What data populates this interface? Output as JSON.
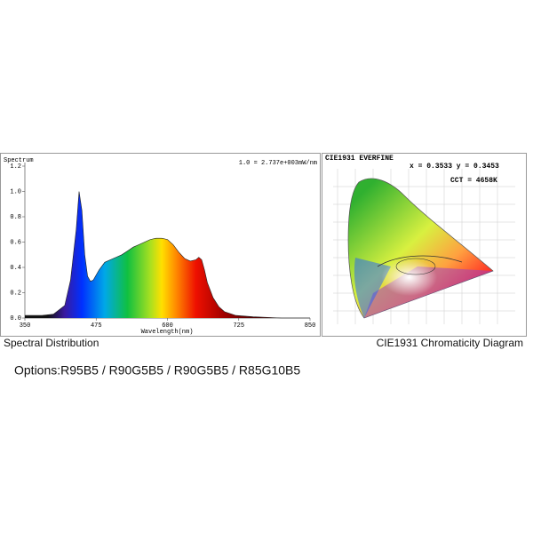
{
  "chart_data": {
    "type": "area",
    "title": "Spectrum",
    "note": "1.0 = 2.737e+003mW/nm",
    "x_label": "Wavelength(nm)",
    "caption": "Spectral Distribution",
    "x": [
      350,
      380,
      400,
      420,
      430,
      440,
      445,
      450,
      455,
      460,
      465,
      470,
      480,
      490,
      500,
      510,
      520,
      530,
      540,
      550,
      560,
      570,
      580,
      590,
      600,
      610,
      620,
      630,
      640,
      650,
      655,
      660,
      665,
      670,
      680,
      690,
      700,
      720,
      750,
      800,
      850
    ],
    "values": [
      0.02,
      0.02,
      0.03,
      0.1,
      0.3,
      0.7,
      1.0,
      0.85,
      0.5,
      0.33,
      0.29,
      0.3,
      0.38,
      0.44,
      0.46,
      0.48,
      0.5,
      0.53,
      0.56,
      0.58,
      0.6,
      0.62,
      0.63,
      0.63,
      0.62,
      0.58,
      0.52,
      0.47,
      0.45,
      0.46,
      0.48,
      0.46,
      0.38,
      0.28,
      0.16,
      0.09,
      0.05,
      0.02,
      0.01,
      0,
      0
    ],
    "xlim": [
      350,
      850
    ],
    "xticks": [
      350,
      475,
      600,
      725,
      850
    ],
    "ylim": [
      0,
      1.2
    ],
    "yticks": [
      {
        "value": 0,
        "label": "0.0"
      },
      0.2,
      0.4,
      0.6,
      0.8,
      {
        "value": 1,
        "label": "1.0"
      },
      1.2
    ]
  },
  "cie": {
    "title": "CIE1931  EVERFINE",
    "coords": "x = 0.3533 y = 0.3453",
    "cct": "CCT = 4658K",
    "caption": "CIE1931 Chromaticity Diagram"
  },
  "options": "Options:R95B5 / R90G5B5 / R90G5B5 / R85G10B5"
}
